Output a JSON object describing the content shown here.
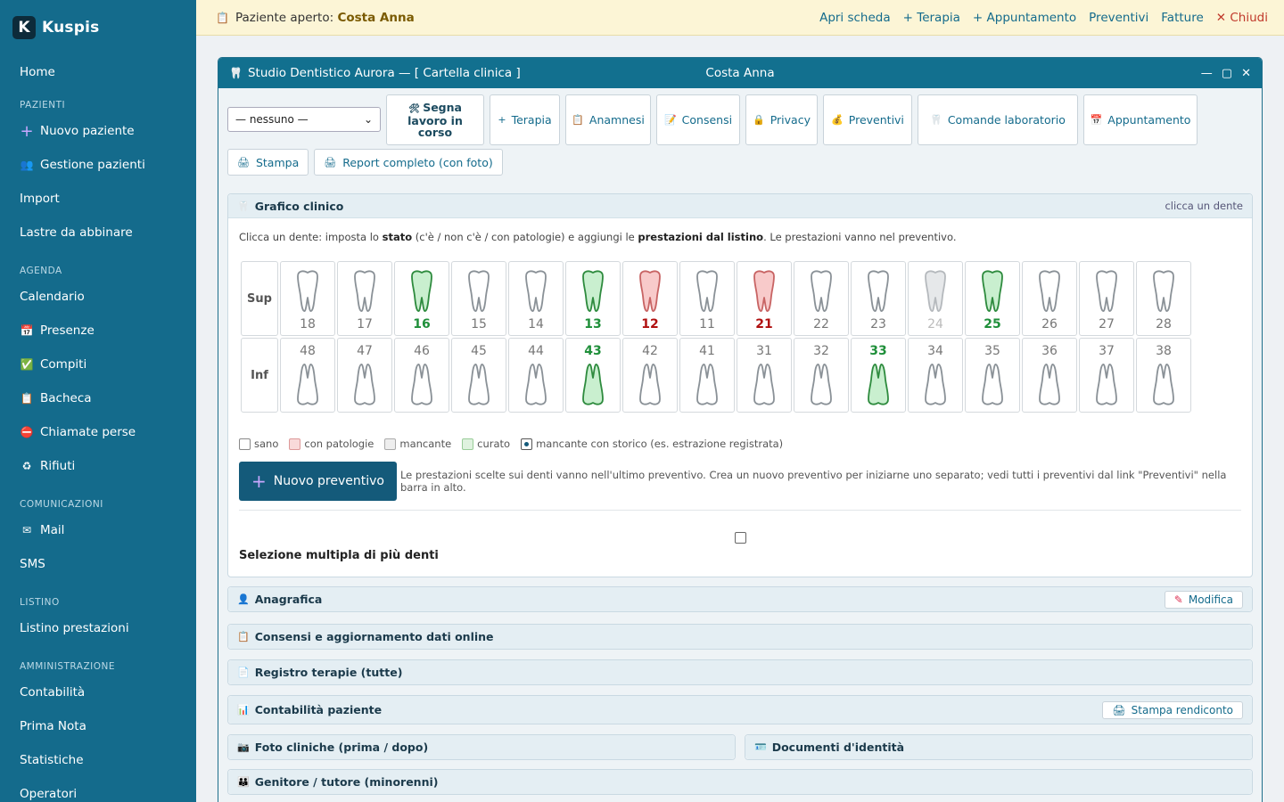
{
  "brand": {
    "logo_letter": "K",
    "name": "Kuspis"
  },
  "sidebar": {
    "items": [
      {
        "type": "item",
        "label": "Home",
        "icon": ""
      },
      {
        "type": "section",
        "label": "PAZIENTI"
      },
      {
        "type": "item",
        "label": "Nuovo paziente",
        "icon": "+"
      },
      {
        "type": "item",
        "label": "Gestione pazienti",
        "icon": "👥"
      },
      {
        "type": "item",
        "label": "Import",
        "icon": ""
      },
      {
        "type": "item",
        "label": "Lastre da abbinare",
        "icon": ""
      },
      {
        "type": "section",
        "label": "AGENDA"
      },
      {
        "type": "item",
        "label": "Calendario",
        "icon": ""
      },
      {
        "type": "item",
        "label": "Presenze",
        "icon": "📅"
      },
      {
        "type": "item",
        "label": "Compiti",
        "icon": "✅"
      },
      {
        "type": "item",
        "label": "Bacheca",
        "icon": "📋"
      },
      {
        "type": "item",
        "label": "Chiamate perse",
        "icon": "⛔"
      },
      {
        "type": "item",
        "label": "Rifiuti",
        "icon": "♻"
      },
      {
        "type": "section",
        "label": "COMUNICAZIONI"
      },
      {
        "type": "item",
        "label": "Mail",
        "icon": "✉"
      },
      {
        "type": "item",
        "label": "SMS",
        "icon": ""
      },
      {
        "type": "section",
        "label": "LISTINO"
      },
      {
        "type": "item",
        "label": "Listino prestazioni",
        "icon": ""
      },
      {
        "type": "section",
        "label": "AMMINISTRAZIONE"
      },
      {
        "type": "item",
        "label": "Contabilità",
        "icon": ""
      },
      {
        "type": "item",
        "label": "Prima Nota",
        "icon": ""
      },
      {
        "type": "item",
        "label": "Statistiche",
        "icon": ""
      },
      {
        "type": "item",
        "label": "Operatori",
        "icon": ""
      }
    ]
  },
  "topbar": {
    "prefix": "Paziente aperto:",
    "patient": "Costa Anna",
    "links": [
      "Apri scheda",
      "+ Terapia",
      "+ Appuntamento",
      "Preventivi",
      "Fatture"
    ],
    "close": "✕ Chiudi"
  },
  "window": {
    "title": "Studio Dentistico Aurora — [ Cartella clinica ]",
    "patient": "Costa Anna",
    "controls": [
      "—",
      "▢",
      "✕"
    ]
  },
  "toolbar": {
    "select_value": "— nessuno —",
    "segna_lines": [
      "Segna",
      "lavoro in",
      "corso"
    ],
    "buttons": [
      {
        "label": "Terapia",
        "icon": "+"
      },
      {
        "label": "Anamnesi",
        "icon": "📋"
      },
      {
        "label": "Consensi",
        "icon": "📝"
      },
      {
        "label": "Privacy",
        "icon": "🔒"
      },
      {
        "label": "Preventivi",
        "icon": "💰"
      },
      {
        "label": "Comande laboratorio",
        "icon": "🦷"
      },
      {
        "label": "Appuntamento",
        "icon": "📅"
      }
    ],
    "row2": [
      {
        "label": "Stampa",
        "icon": "🖨"
      },
      {
        "label": "Report completo (con foto)",
        "icon": "🖨"
      }
    ]
  },
  "grafico": {
    "title": "Grafico clinico",
    "hint": "clicca un dente",
    "instr_1": "Clicca un dente: imposta lo ",
    "instr_b1": "stato",
    "instr_2": " (c'è / non c'è / con patologie) e aggiungi le ",
    "instr_b2": "prestazioni dal listino",
    "instr_3": ". Le prestazioni vanno nel preventivo.",
    "sup_label": "Sup",
    "inf_label": "Inf",
    "upper": [
      {
        "num": "18",
        "state": "sano"
      },
      {
        "num": "17",
        "state": "sano"
      },
      {
        "num": "16",
        "state": "curato"
      },
      {
        "num": "15",
        "state": "sano"
      },
      {
        "num": "14",
        "state": "sano"
      },
      {
        "num": "13",
        "state": "curato"
      },
      {
        "num": "12",
        "state": "patologie"
      },
      {
        "num": "11",
        "state": "sano"
      },
      {
        "num": "21",
        "state": "patologie"
      },
      {
        "num": "22",
        "state": "sano"
      },
      {
        "num": "23",
        "state": "sano"
      },
      {
        "num": "24",
        "state": "mancante"
      },
      {
        "num": "25",
        "state": "curato"
      },
      {
        "num": "26",
        "state": "sano"
      },
      {
        "num": "27",
        "state": "sano"
      },
      {
        "num": "28",
        "state": "sano"
      }
    ],
    "lower": [
      {
        "num": "48",
        "state": "sano"
      },
      {
        "num": "47",
        "state": "sano"
      },
      {
        "num": "46",
        "state": "sano"
      },
      {
        "num": "45",
        "state": "sano"
      },
      {
        "num": "44",
        "state": "sano"
      },
      {
        "num": "43",
        "state": "curato"
      },
      {
        "num": "42",
        "state": "sano"
      },
      {
        "num": "41",
        "state": "sano"
      },
      {
        "num": "31",
        "state": "sano"
      },
      {
        "num": "32",
        "state": "sano"
      },
      {
        "num": "33",
        "state": "curato"
      },
      {
        "num": "34",
        "state": "sano"
      },
      {
        "num": "35",
        "state": "sano"
      },
      {
        "num": "36",
        "state": "sano"
      },
      {
        "num": "37",
        "state": "sano"
      },
      {
        "num": "38",
        "state": "sano"
      }
    ],
    "legend": [
      {
        "label": "sano",
        "cls": "sano"
      },
      {
        "label": "con patologie",
        "cls": "patologie"
      },
      {
        "label": "mancante",
        "cls": "mancante"
      },
      {
        "label": "curato",
        "cls": "curato"
      },
      {
        "label": "mancante con storico (es. estrazione registrata)",
        "cls": "storico"
      }
    ],
    "new_preventivo": "Nuovo preventivo",
    "preventivo_note": "Le prestazioni scelte sui denti vanno nell'ultimo preventivo. Crea un nuovo preventivo per iniziarne uno separato; vedi tutti i preventivi dal link \"Preventivi\" nella barra in alto.",
    "multi_label": "Selezione multipla di più denti"
  },
  "colors": {
    "sano_fill": "#ffffff",
    "sano_stroke": "#8a9197",
    "curato_fill": "#c9efcf",
    "curato_stroke": "#2e8b3e",
    "patologie_fill": "#f8caca",
    "patologie_stroke": "#c86464",
    "mancante_fill": "#e6e8ea",
    "mancante_stroke": "#b5b9bd"
  },
  "panels": {
    "anagrafica": "Anagrafica",
    "modifica": "Modifica",
    "consensi": "Consensi e aggiornamento dati online",
    "registro": "Registro terapie (tutte)",
    "contabilita": "Contabilità paziente",
    "stampa_rendiconto": "Stampa rendiconto",
    "foto": "Foto cliniche (prima / dopo)",
    "documenti": "Documenti d'identità",
    "genitore": "Genitore / tutore (minorenni)"
  }
}
